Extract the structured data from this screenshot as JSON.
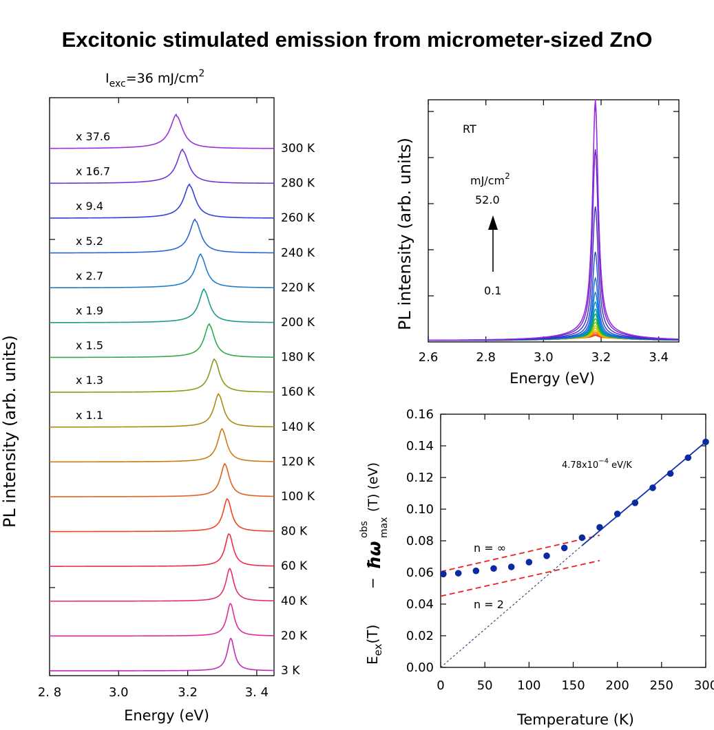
{
  "title": "Excitonic stimulated emission from micrometer-sized ZnO",
  "chart_data": [
    {
      "type": "line",
      "id": "temperature-spectra",
      "header": {
        "base": "I",
        "sub": "exc",
        "mid": "=36 mJ/cm",
        "sup": "2"
      },
      "xlabel": "Energy (eV)",
      "ylabel": "PL intensity (arb. units)",
      "xlim": [
        2.8,
        3.45
      ],
      "xticks": [
        {
          "value": 2.8,
          "label": "2. 8"
        },
        {
          "value": 3.0,
          "label": "3.0"
        },
        {
          "value": 3.2,
          "label": "3.2"
        },
        {
          "value": 3.4,
          "label": "3. 4"
        }
      ],
      "series": [
        {
          "temperature": "300 K",
          "multiplier": "x 37.6",
          "peak": 3.168,
          "color": "#9a2ee0"
        },
        {
          "temperature": "280 K",
          "multiplier": "x 16.7",
          "peak": 3.186,
          "color": "#6d35d6"
        },
        {
          "temperature": "260 K",
          "multiplier": "x 9.4",
          "peak": 3.206,
          "color": "#2f3fd8"
        },
        {
          "temperature": "240 K",
          "multiplier": "x 5.2",
          "peak": 3.222,
          "color": "#2b63d6"
        },
        {
          "temperature": "220 K",
          "multiplier": "x 2.7",
          "peak": 3.238,
          "color": "#1f7cc8"
        },
        {
          "temperature": "200 K",
          "multiplier": "x 1.9",
          "peak": 3.248,
          "color": "#1a9a8a"
        },
        {
          "temperature": "180 K",
          "multiplier": "x 1.5",
          "peak": 3.263,
          "color": "#2faa4a"
        },
        {
          "temperature": "160 K",
          "multiplier": "x 1.3",
          "peak": 3.278,
          "color": "#8a9a18"
        },
        {
          "temperature": "140 K",
          "multiplier": "x 1.1",
          "peak": 3.29,
          "color": "#b0880e"
        },
        {
          "temperature": "120 K",
          "multiplier": "",
          "peak": 3.3,
          "color": "#cc7a14"
        },
        {
          "temperature": "100 K",
          "multiplier": "",
          "peak": 3.308,
          "color": "#e0601c"
        },
        {
          "temperature": "80 K",
          "multiplier": "",
          "peak": 3.315,
          "color": "#ec4420"
        },
        {
          "temperature": "60 K",
          "multiplier": "",
          "peak": 3.32,
          "color": "#ee2a4a"
        },
        {
          "temperature": "40 K",
          "multiplier": "",
          "peak": 3.322,
          "color": "#e62a78"
        },
        {
          "temperature": "20 K",
          "multiplier": "",
          "peak": 3.324,
          "color": "#dc2a9e"
        },
        {
          "temperature": "3 K",
          "multiplier": "",
          "peak": 3.325,
          "color": "#c22ab8"
        }
      ]
    },
    {
      "type": "line",
      "id": "rt-excitation",
      "annotation": "RT",
      "legend": {
        "unit": "mJ/cm",
        "unit_sup": "2",
        "max": "52.0",
        "min": "0.1"
      },
      "xlabel": "Energy (eV)",
      "ylabel": "PL intensity (arb. units)",
      "xlim": [
        2.6,
        3.47
      ],
      "xticks": [
        {
          "value": 2.6,
          "label": "2.6"
        },
        {
          "value": 2.8,
          "label": "2.8"
        },
        {
          "value": 3.0,
          "label": "3.0"
        },
        {
          "value": 3.2,
          "label": "3.2"
        },
        {
          "value": 3.4,
          "label": "3.4"
        }
      ],
      "ylim": [
        0,
        1
      ],
      "peak_energy": 3.18,
      "series_peaks": [
        0.01,
        0.015,
        0.022,
        0.03,
        0.04,
        0.05,
        0.065,
        0.08,
        0.1,
        0.12,
        0.15,
        0.19,
        0.25,
        0.36,
        0.55,
        0.79,
        0.98,
        1.0
      ],
      "colors": [
        "#ff2020",
        "#ff4a10",
        "#ff7a00",
        "#ffa000",
        "#e8c000",
        "#b8c800",
        "#80c000",
        "#40b030",
        "#10a060",
        "#00a0a0",
        "#0090c8",
        "#0a78d8",
        "#1560d8",
        "#2040d0",
        "#3a28c8",
        "#6a20c8",
        "#8a20d0",
        "#9a2ee0"
      ]
    },
    {
      "type": "scatter",
      "id": "energy-shift",
      "xlabel": "Temperature (K)",
      "ylabel": {
        "left": "E",
        "left_sub": "ex",
        "left_tail": "(T)",
        "minus": "−",
        "hbar": "ħω",
        "sup": "obs",
        "sub": "max",
        "right": "(T) (eV)"
      },
      "xlim": [
        0,
        300
      ],
      "ylim": [
        0,
        0.16
      ],
      "xticks": [
        0,
        50,
        100,
        150,
        200,
        250,
        300
      ],
      "yticks": [
        {
          "value": 0.0,
          "label": "0.00"
        },
        {
          "value": 0.02,
          "label": "0.02"
        },
        {
          "value": 0.04,
          "label": "0.04"
        },
        {
          "value": 0.06,
          "label": "0.06"
        },
        {
          "value": 0.08,
          "label": "0.08"
        },
        {
          "value": 0.1,
          "label": "0.10"
        },
        {
          "value": 0.12,
          "label": "0.12"
        },
        {
          "value": 0.14,
          "label": "0.14"
        },
        {
          "value": 0.16,
          "label": "0.16"
        }
      ],
      "x": [
        3,
        20,
        40,
        60,
        80,
        100,
        120,
        140,
        160,
        180,
        200,
        220,
        240,
        260,
        280,
        300
      ],
      "y": [
        0.059,
        0.0595,
        0.061,
        0.0625,
        0.0635,
        0.0665,
        0.0705,
        0.0755,
        0.082,
        0.0885,
        0.097,
        0.104,
        0.1135,
        0.1225,
        0.1325,
        0.1425
      ],
      "point_color": "#0a2aa0",
      "fit": {
        "x": [
          160,
          300
        ],
        "y": [
          0.077,
          0.1425
        ],
        "color": "#1030b0",
        "label_base": "4.78x10",
        "label_sup": "−4",
        "label_unit": " eV/K"
      },
      "extrapolation": {
        "x": [
          0,
          160
        ],
        "y": [
          0.0,
          0.077
        ],
        "color": "#1a2a60"
      },
      "n_inf": {
        "label": "n = ∞",
        "x": [
          0,
          180
        ],
        "y": [
          0.0605,
          0.0835
        ],
        "color": "#e82020"
      },
      "n_2": {
        "label": "n = 2",
        "x": [
          0,
          180
        ],
        "y": [
          0.045,
          0.0675
        ],
        "color": "#e82020"
      },
      "label_color": "#a02828"
    }
  ]
}
